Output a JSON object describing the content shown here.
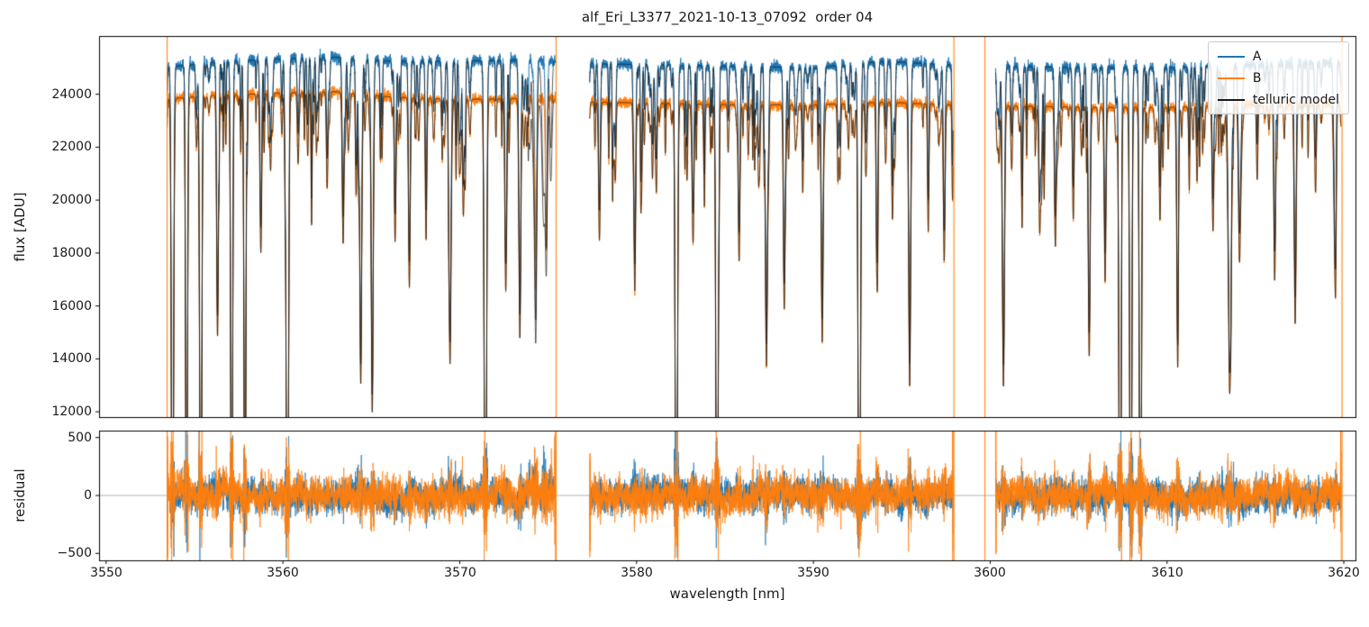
{
  "chart_data": {
    "type": "line",
    "title": "alf_Eri_L3377_2021-10-13_07092  order 04",
    "xlabel": "wavelength [nm]",
    "xlim": [
      3549.6,
      3620.66
    ],
    "xticks": [
      3550,
      3560,
      3570,
      3580,
      3590,
      3600,
      3610,
      3620
    ],
    "xtick_labels": [
      "3550",
      "3560",
      "3570",
      "3580",
      "3590",
      "3600",
      "3610",
      "3620"
    ],
    "panels": [
      {
        "name": "flux",
        "ylabel": "flux [ADU]",
        "ylim": [
          11800,
          26200
        ],
        "yticks": [
          12000,
          14000,
          16000,
          18000,
          20000,
          22000,
          24000
        ],
        "ytick_labels": [
          "12000",
          "14000",
          "16000",
          "18000",
          "20000",
          "22000",
          "24000"
        ]
      },
      {
        "name": "residual",
        "ylabel": "residual",
        "ylim": [
          -560,
          560
        ],
        "yticks": [
          -500,
          0,
          500
        ],
        "ytick_labels": [
          "−500",
          "0",
          "500"
        ]
      }
    ],
    "legend": {
      "position": "upper right",
      "entries": [
        {
          "label": "A",
          "color": "#1f77b4"
        },
        {
          "label": "B",
          "color": "#ff7f0e"
        },
        {
          "label": "telluric model",
          "color": "#1a1a1a"
        }
      ]
    },
    "colors": {
      "A": "#1f77b4",
      "B": "#ff7f0e",
      "telluric": "#1a1a1a",
      "edge_lines": "#ff7f0e",
      "zero_line": "#b0b0b0",
      "frame": "#000000"
    },
    "grid": false,
    "segments": [
      [
        3553.45,
        3575.4
      ],
      [
        3577.35,
        3597.9
      ],
      [
        3600.3,
        3619.85
      ]
    ],
    "edge_line_x": [
      3553.45,
      3575.45,
      3597.95,
      3599.7,
      3619.9
    ],
    "continuum_A": {
      "x": [
        3553,
        3556,
        3560,
        3563,
        3566,
        3570,
        3574,
        3578,
        3582,
        3586,
        3590,
        3594,
        3598,
        3602,
        3606,
        3610,
        3614,
        3618,
        3621
      ],
      "y": [
        25000,
        25200,
        25350,
        25400,
        25250,
        25250,
        25300,
        25150,
        25100,
        25050,
        25000,
        25250,
        25100,
        25050,
        25000,
        25000,
        25100,
        25150,
        25250
      ]
    },
    "continuum_B": {
      "x": [
        3553,
        3556,
        3560,
        3563,
        3566,
        3570,
        3574,
        3578,
        3582,
        3586,
        3590,
        3594,
        3598,
        3602,
        3606,
        3610,
        3614,
        3618,
        3621
      ],
      "y": [
        23800,
        23950,
        24050,
        24100,
        23900,
        23800,
        23850,
        23700,
        23650,
        23600,
        23600,
        23700,
        23600,
        23550,
        23500,
        23500,
        23600,
        23600,
        23700
      ]
    },
    "telluric_lines": [
      [
        3553.75,
        0.92,
        0.055
      ],
      [
        3554.55,
        0.85,
        0.05
      ],
      [
        3555.35,
        0.9,
        0.055
      ],
      [
        3556.3,
        0.38,
        0.05
      ],
      [
        3557.1,
        0.88,
        0.05
      ],
      [
        3557.85,
        0.8,
        0.05
      ],
      [
        3558.75,
        0.25,
        0.05
      ],
      [
        3559.3,
        0.12,
        0.04
      ],
      [
        3560.25,
        0.95,
        0.06
      ],
      [
        3561.4,
        0.1,
        0.04
      ],
      [
        3562.5,
        0.15,
        0.045
      ],
      [
        3563.4,
        0.22,
        0.05
      ],
      [
        3564.4,
        0.45,
        0.05
      ],
      [
        3565.05,
        0.5,
        0.055
      ],
      [
        3566.35,
        0.2,
        0.05
      ],
      [
        3567.15,
        0.3,
        0.05
      ],
      [
        3568.1,
        0.16,
        0.045
      ],
      [
        3569.45,
        0.42,
        0.06
      ],
      [
        3570.2,
        0.18,
        0.045
      ],
      [
        3571.45,
        0.93,
        0.06
      ],
      [
        3572.6,
        0.3,
        0.05
      ],
      [
        3573.4,
        0.38,
        0.055
      ],
      [
        3574.3,
        0.3,
        0.05
      ],
      [
        3574.9,
        0.24,
        0.05
      ],
      [
        3577.9,
        0.22,
        0.05
      ],
      [
        3578.8,
        0.12,
        0.04
      ],
      [
        3579.9,
        0.3,
        0.05
      ],
      [
        3580.9,
        0.12,
        0.04
      ],
      [
        3582.25,
        0.92,
        0.06
      ],
      [
        3583.2,
        0.2,
        0.05
      ],
      [
        3584.55,
        0.88,
        0.06
      ],
      [
        3585.8,
        0.25,
        0.05
      ],
      [
        3586.9,
        0.12,
        0.04
      ],
      [
        3587.35,
        0.4,
        0.055
      ],
      [
        3588.35,
        0.32,
        0.05
      ],
      [
        3589.4,
        0.14,
        0.04
      ],
      [
        3590.5,
        0.38,
        0.055
      ],
      [
        3591.5,
        0.12,
        0.04
      ],
      [
        3592.6,
        0.9,
        0.06
      ],
      [
        3593.6,
        0.2,
        0.05
      ],
      [
        3594.6,
        0.1,
        0.04
      ],
      [
        3595.45,
        0.4,
        0.055
      ],
      [
        3596.5,
        0.14,
        0.04
      ],
      [
        3597.4,
        0.25,
        0.05
      ],
      [
        3600.75,
        0.45,
        0.06
      ],
      [
        3601.8,
        0.12,
        0.04
      ],
      [
        3602.8,
        0.2,
        0.05
      ],
      [
        3603.7,
        0.12,
        0.04
      ],
      [
        3604.7,
        0.18,
        0.045
      ],
      [
        3605.6,
        0.4,
        0.055
      ],
      [
        3606.5,
        0.28,
        0.05
      ],
      [
        3607.35,
        0.92,
        0.055
      ],
      [
        3607.95,
        0.9,
        0.055
      ],
      [
        3608.5,
        0.88,
        0.055
      ],
      [
        3609.6,
        0.16,
        0.045
      ],
      [
        3610.6,
        0.32,
        0.05
      ],
      [
        3611.7,
        0.12,
        0.04
      ],
      [
        3612.6,
        0.2,
        0.05
      ],
      [
        3613.55,
        0.42,
        0.09
      ],
      [
        3614.1,
        0.25,
        0.06
      ],
      [
        3615.1,
        0.12,
        0.04
      ],
      [
        3616.1,
        0.24,
        0.05
      ],
      [
        3617.25,
        0.35,
        0.055
      ],
      [
        3618.4,
        0.14,
        0.045
      ],
      [
        3619.5,
        0.2,
        0.05
      ]
    ],
    "uncorrected_lines": [
      [
        3573.95,
        0.08,
        0.05
      ],
      [
        3574.25,
        0.14,
        0.1
      ],
      [
        3574.75,
        0.2,
        0.09
      ],
      [
        3575.15,
        0.13,
        0.06
      ]
    ],
    "residual": {
      "sigma_A": 58,
      "sigma_B": 64,
      "typical_band": 150,
      "spike_max": 500
    }
  }
}
